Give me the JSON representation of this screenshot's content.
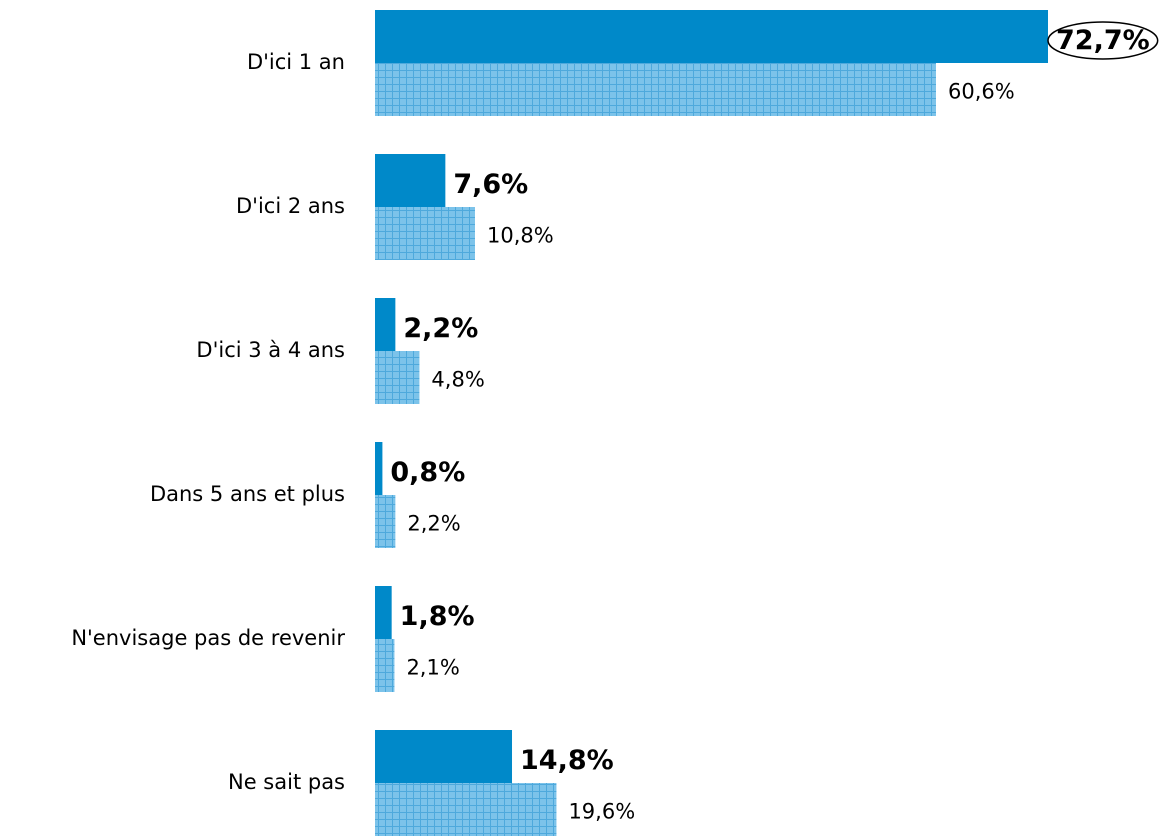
{
  "chart_data": {
    "type": "hbar",
    "categories": [
      "D'ici 1 an",
      "D'ici 2 ans",
      "D'ici 3 à 4 ans",
      "Dans 5 ans et plus",
      "N'envisage pas de revenir",
      "Ne sait pas"
    ],
    "series": [
      {
        "color": "#0089c9",
        "values": [
          72.7,
          7.6,
          2.2,
          0.8,
          1.8,
          14.8
        ],
        "value_labels": [
          "72,7%",
          "7,6%",
          "2,2%",
          "0,8%",
          "1,8%",
          "14,8%"
        ]
      },
      {
        "color": "#7cc3ea",
        "values": [
          60.6,
          10.8,
          4.8,
          2.2,
          2.1,
          19.6
        ],
        "value_labels": [
          "60,6%",
          "10,8%",
          "4,8%",
          "2,2%",
          "2,1%",
          "19,6%"
        ]
      }
    ]
  }
}
